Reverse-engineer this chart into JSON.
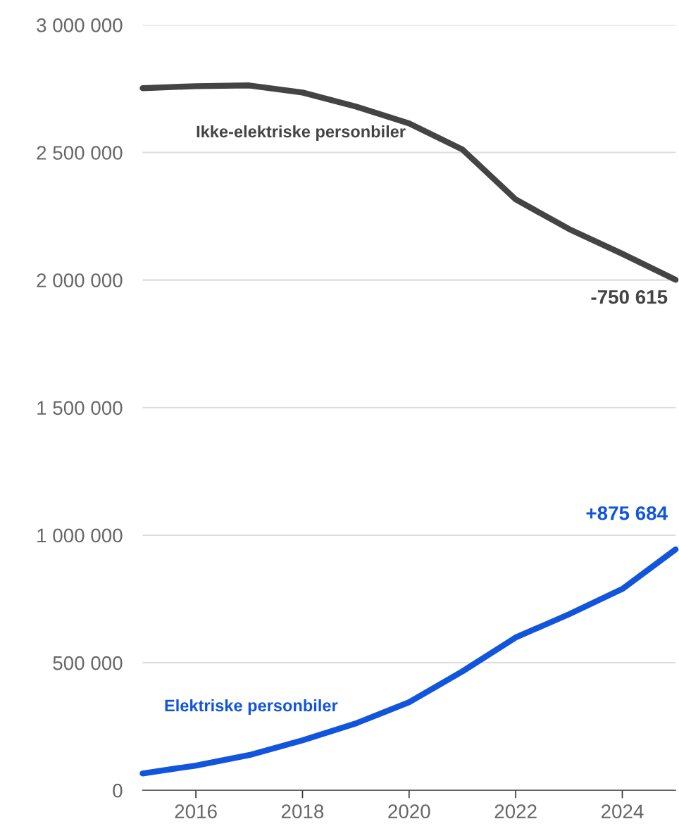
{
  "chart_data": {
    "type": "line",
    "x": [
      2015,
      2016,
      2017,
      2018,
      2019,
      2020,
      2021,
      2022,
      2023,
      2024,
      2025
    ],
    "series": [
      {
        "name": "Ikke-elektriske personbiler",
        "color": "#444444",
        "values": [
          2752000,
          2760000,
          2763000,
          2735000,
          2680000,
          2614000,
          2512000,
          2316000,
          2200000,
          2103000,
          2001000
        ]
      },
      {
        "name": "Elektriske personbiler",
        "color": "#1155dd",
        "values": [
          66000,
          97000,
          138000,
          196000,
          262000,
          345000,
          466000,
          599000,
          690000,
          789000,
          944000
        ]
      }
    ],
    "annotations": [
      {
        "text": "-750 615",
        "x": 2025,
        "y": 2001000
      },
      {
        "text": "+875 684",
        "x": 2025,
        "y": 944000
      }
    ],
    "xlim": [
      2015,
      2025
    ],
    "xticks": [
      2016,
      2018,
      2020,
      2022,
      2024
    ],
    "ylim": [
      0,
      3000000
    ],
    "yticks": [
      {
        "value": 0,
        "label": "0"
      },
      {
        "value": 500000,
        "label": "500 000"
      },
      {
        "value": 1000000,
        "label": "1 000 000"
      },
      {
        "value": 1500000,
        "label": "1 500 000"
      },
      {
        "value": 2000000,
        "label": "2 000 000"
      },
      {
        "value": 2500000,
        "label": "2 500 000"
      },
      {
        "value": 3000000,
        "label": "3 000 000"
      }
    ],
    "grid": "y",
    "legend": false,
    "marker": "none",
    "line_style": "solid"
  }
}
